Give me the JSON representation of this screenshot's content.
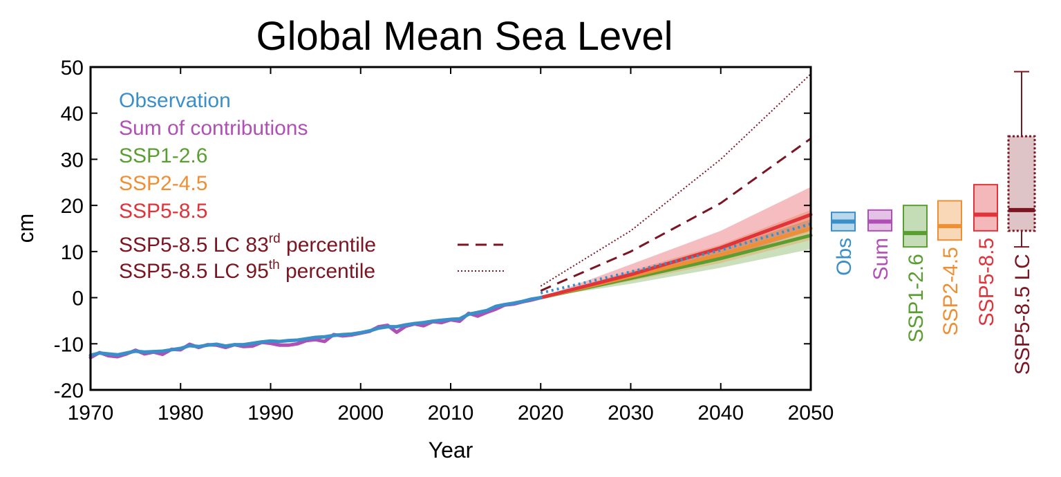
{
  "chart_data": {
    "type": "line",
    "title": "Global Mean Sea Level",
    "xlabel": "Year",
    "ylabel": "cm",
    "xlim": [
      1970,
      2050
    ],
    "ylim": [
      -20,
      50
    ],
    "x_ticks": [
      "1970",
      "1980",
      "1990",
      "2000",
      "2010",
      "2020",
      "2030",
      "2040",
      "2050"
    ],
    "y_ticks": [
      "-20",
      "-10",
      "0",
      "10",
      "20",
      "30",
      "40",
      "50"
    ],
    "grid": false,
    "legend_position": "top-left",
    "series": [
      {
        "name": "Observation",
        "color": "#3a8fc9",
        "x": [
          1970,
          1971,
          1972,
          1973,
          1974,
          1975,
          1976,
          1977,
          1978,
          1979,
          1980,
          1981,
          1982,
          1983,
          1984,
          1985,
          1986,
          1987,
          1988,
          1989,
          1990,
          1991,
          1992,
          1993,
          1994,
          1995,
          1996,
          1997,
          1998,
          1999,
          2000,
          2001,
          2002,
          2003,
          2004,
          2005,
          2006,
          2007,
          2008,
          2009,
          2010,
          2011,
          2012,
          2013,
          2014,
          2015,
          2016,
          2017,
          2018,
          2019,
          2020
        ],
        "y": [
          -12.5,
          -12.0,
          -12.2,
          -12.4,
          -12.0,
          -11.6,
          -11.8,
          -11.7,
          -11.6,
          -11.3,
          -11.0,
          -10.4,
          -10.6,
          -10.3,
          -10.1,
          -10.5,
          -10.2,
          -10.2,
          -9.9,
          -9.6,
          -9.4,
          -9.5,
          -9.3,
          -9.2,
          -8.9,
          -8.6,
          -8.5,
          -8.2,
          -8.0,
          -7.9,
          -7.6,
          -7.2,
          -6.6,
          -6.3,
          -6.3,
          -5.9,
          -5.6,
          -5.4,
          -5.1,
          -4.9,
          -4.7,
          -4.6,
          -3.6,
          -3.2,
          -2.8,
          -1.9,
          -1.5,
          -1.2,
          -0.8,
          -0.3,
          0.0
        ]
      },
      {
        "name": "Sum of contributions",
        "color": "#b04fb5",
        "x": [
          1970,
          1971,
          1972,
          1973,
          1974,
          1975,
          1976,
          1977,
          1978,
          1979,
          1980,
          1981,
          1982,
          1983,
          1984,
          1985,
          1986,
          1987,
          1988,
          1989,
          1990,
          1991,
          1992,
          1993,
          1994,
          1995,
          1996,
          1997,
          1998,
          1999,
          2000,
          2001,
          2002,
          2003,
          2004,
          2005,
          2006,
          2007,
          2008,
          2009,
          2010,
          2011,
          2012,
          2013,
          2014,
          2015,
          2016,
          2017,
          2018,
          2019,
          2020
        ],
        "y": [
          -13.0,
          -11.9,
          -12.6,
          -12.8,
          -12.2,
          -11.4,
          -12.2,
          -11.8,
          -12.3,
          -11.2,
          -11.3,
          -10.1,
          -10.8,
          -10.2,
          -10.3,
          -10.8,
          -10.2,
          -10.6,
          -10.5,
          -9.7,
          -9.9,
          -10.3,
          -10.3,
          -10.0,
          -9.3,
          -9.1,
          -9.5,
          -8.0,
          -8.3,
          -8.1,
          -7.7,
          -7.3,
          -6.3,
          -6.0,
          -7.5,
          -6.2,
          -5.7,
          -6.1,
          -5.2,
          -5.4,
          -4.8,
          -5.1,
          -3.4,
          -4.0,
          -3.2,
          -2.5,
          -1.6,
          -1.4,
          -0.9,
          -0.5,
          0.0
        ]
      },
      {
        "name": "SSP1-2.6",
        "color": "#5a9e32",
        "x": [
          2020,
          2030,
          2040,
          2050
        ],
        "y": [
          0.0,
          4.2,
          8.5,
          13.5
        ],
        "range_low": [
          0.0,
          3.0,
          6.5,
          10.5
        ],
        "range_high": [
          0.0,
          5.5,
          10.5,
          17.0
        ]
      },
      {
        "name": "SSP2-4.5",
        "color": "#ee8f34",
        "x": [
          2020,
          2030,
          2040,
          2050
        ],
        "y": [
          0.0,
          4.6,
          9.3,
          15.0
        ],
        "range_low": [
          0.0,
          3.6,
          7.5,
          12.5
        ],
        "range_high": [
          0.0,
          5.8,
          11.5,
          19.0
        ]
      },
      {
        "name": "SSP5-8.5",
        "color": "#e0333a",
        "x": [
          2020,
          2030,
          2040,
          2050
        ],
        "y": [
          0.0,
          5.0,
          10.8,
          18.0
        ],
        "range_low": [
          0.0,
          3.8,
          8.5,
          14.5
        ],
        "range_high": [
          0.0,
          7.2,
          14.5,
          24.0
        ]
      },
      {
        "name": "SSP5-8.5 LC 83rd percentile",
        "color": "#7a1521",
        "style": "dashed",
        "x": [
          2020,
          2030,
          2040,
          2050
        ],
        "y": [
          1.5,
          10.0,
          20.5,
          34.5
        ]
      },
      {
        "name": "SSP5-8.5 LC 95th percentile",
        "color": "#7a1521",
        "style": "dotted",
        "x": [
          2020,
          2030,
          2040,
          2050
        ],
        "y": [
          2.5,
          14.5,
          30.0,
          48.5
        ]
      }
    ],
    "legend": [
      {
        "text": "Observation",
        "color": "#3a8fc9",
        "marker": "none"
      },
      {
        "text": "Sum of contributions",
        "color": "#b04fb5",
        "marker": "none"
      },
      {
        "text": "SSP1-2.6",
        "color": "#5a9e32",
        "marker": "none"
      },
      {
        "text": "SSP2-4.5",
        "color": "#ee8f34",
        "marker": "none"
      },
      {
        "text": "SSP5-8.5",
        "color": "#e0333a",
        "marker": "none"
      },
      {
        "text": "SSP5-8.5 LC 83",
        "sup": "rd",
        "suffix": " percentile",
        "color": "#7a1521",
        "marker": "dashed"
      },
      {
        "text": "SSP5-8.5 LC 95",
        "sup": "th",
        "suffix": " percentile",
        "color": "#7a1521",
        "marker": "dotted"
      }
    ],
    "box_plots": [
      {
        "label": "Obs",
        "color": "#3a8fc9",
        "low": 14.5,
        "median": 16.5,
        "high": 18.5
      },
      {
        "label": "Sum",
        "color": "#b04fb5",
        "low": 14.5,
        "median": 16.5,
        "high": 19.0
      },
      {
        "label": "SSP1-2.6",
        "color": "#5a9e32",
        "low": 11.0,
        "median": 14.0,
        "high": 20.0
      },
      {
        "label": "SSP2-4.5",
        "color": "#ee8f34",
        "low": 12.5,
        "median": 15.5,
        "high": 21.0
      },
      {
        "label": "SSP5-8.5",
        "color": "#e0333a",
        "low": 14.5,
        "median": 18.0,
        "high": 24.5
      },
      {
        "label": "SSP5-8.5 LC",
        "color": "#7a1521",
        "low": 14.5,
        "median": 19.0,
        "high": 35.0,
        "whisker_low": 11.0,
        "whisker_high": 49.0
      }
    ]
  }
}
